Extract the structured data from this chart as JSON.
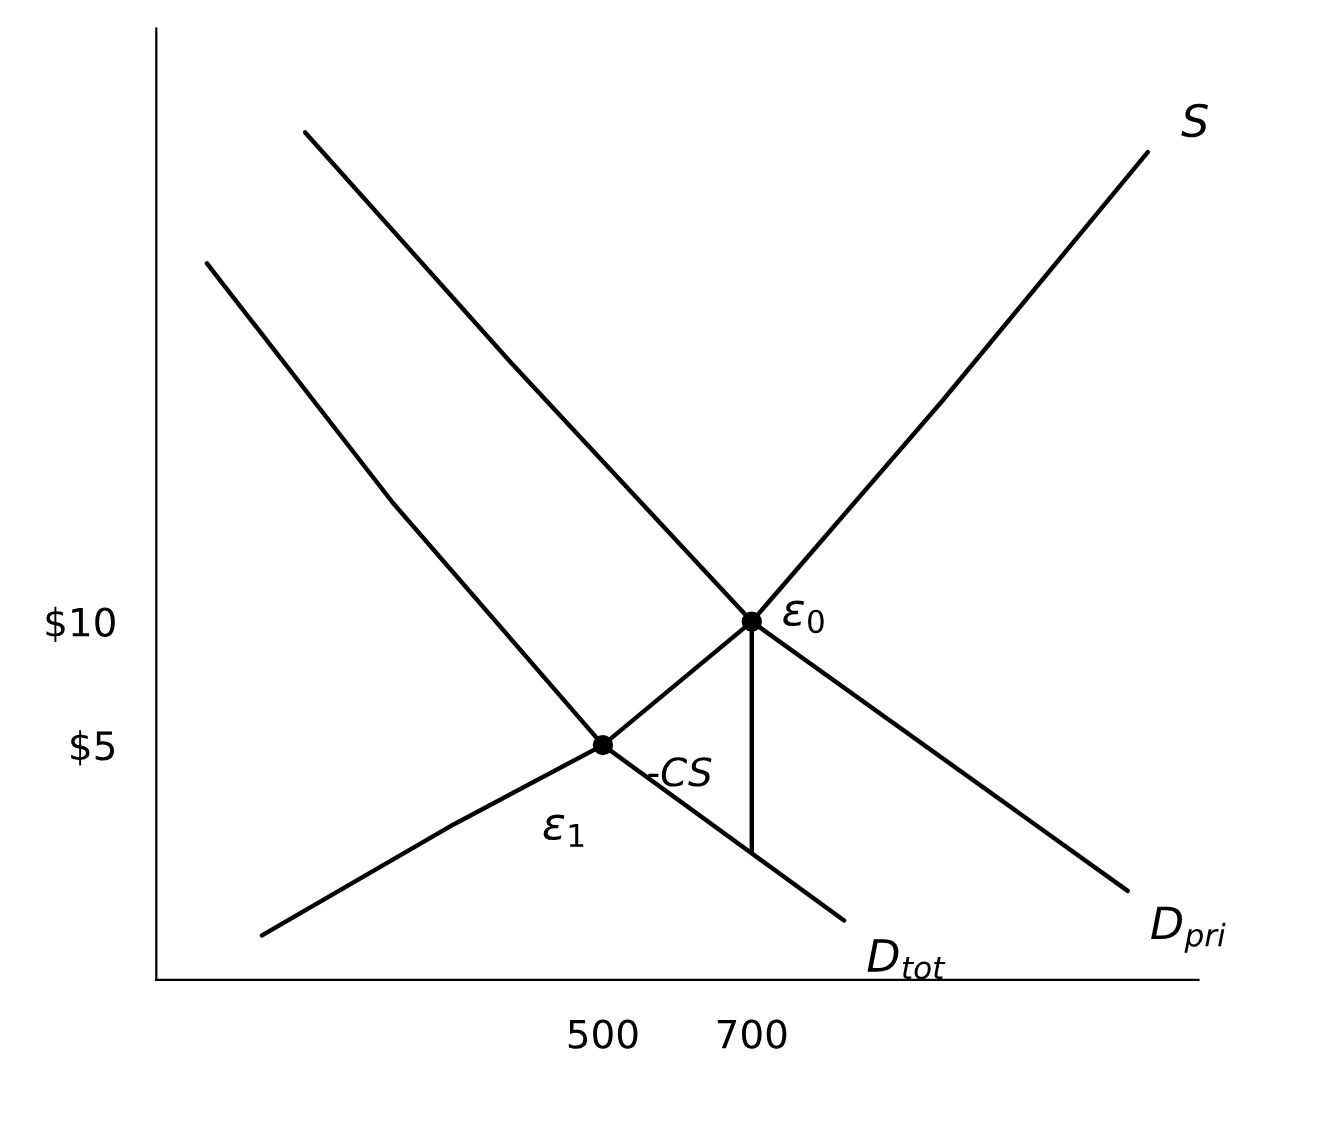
{
  "chart_data": {
    "type": "line",
    "xlim": [
      -100,
      1300
    ],
    "ylim": [
      -4.5,
      34
    ],
    "xticks": [
      500,
      700
    ],
    "yticks": [
      {
        "value": 5,
        "label": "$5"
      },
      {
        "value": 10,
        "label": "$10"
      }
    ],
    "grid": false,
    "legend": false,
    "marker": "none",
    "series": [
      {
        "name": "S",
        "color": "#000000",
        "x": [
          42,
          300,
          500,
          700,
          955,
          1232
        ],
        "values": [
          -2.7,
          1.8,
          5,
          10,
          18.9,
          29
        ]
      },
      {
        "name": "D$_{pri}$",
        "color": "#000000",
        "x": [
          100,
          376,
          700,
          1205
        ],
        "values": [
          29.8,
          20.5,
          10,
          -0.9
        ]
      },
      {
        "name": "D$_{tot}$",
        "color": "#000000",
        "x": [
          -32,
          218,
          500,
          824
        ],
        "values": [
          24.5,
          14.8,
          5,
          -2.1
        ]
      },
      {
        "color": "#000000",
        "x": [
          700,
          700
        ],
        "values": [
          10,
          0.7
        ]
      },
      {
        "type": "scatter",
        "marker": "circle",
        "color": "#000000",
        "x": [
          500,
          700
        ],
        "values": [
          5,
          10
        ]
      }
    ],
    "annotations": [
      "ε$_{0}$",
      "ε$_{1}$",
      "-CS"
    ]
  }
}
